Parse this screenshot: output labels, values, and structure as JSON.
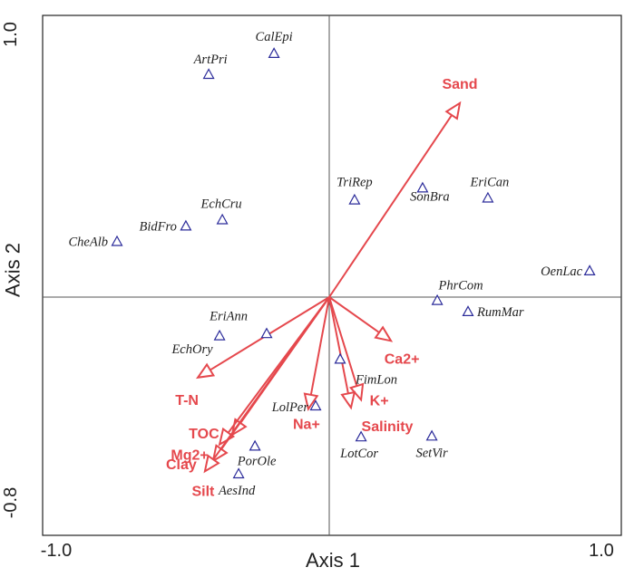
{
  "chart_data": {
    "type": "scatter",
    "title": "",
    "xlabel": "Axis 1",
    "ylabel": "Axis 2",
    "xlim": [
      -1.0,
      1.0
    ],
    "ylim": [
      -0.8,
      1.0
    ],
    "x_ticks": [
      "-1.0",
      "1.0"
    ],
    "y_ticks": [
      "1.0",
      "-0.8"
    ],
    "grid": false,
    "zero_lines": true,
    "species_marker": "open-triangle",
    "colors": {
      "species": "#2b2b9a",
      "vectors": "#e5484d",
      "frame": "#222222",
      "zero_lines": "#555555"
    },
    "species": [
      {
        "label": "CalEpi",
        "x": -0.203,
        "y": 0.897
      },
      {
        "label": "ArtPri",
        "x": -0.443,
        "y": 0.82
      },
      {
        "label": "TriRep",
        "x": 0.093,
        "y": 0.358
      },
      {
        "label": "SonBra",
        "x": 0.343,
        "y": 0.402
      },
      {
        "label": "EriCan",
        "x": 0.583,
        "y": 0.365
      },
      {
        "label": "EchCru",
        "x": -0.393,
        "y": 0.285
      },
      {
        "label": "BidFro",
        "x": -0.527,
        "y": 0.262
      },
      {
        "label": "CheAlb",
        "x": -0.78,
        "y": 0.205
      },
      {
        "label": "OenLac",
        "x": 0.957,
        "y": 0.097
      },
      {
        "label": "PhrCom",
        "x": 0.397,
        "y": -0.012
      },
      {
        "label": "RumMar",
        "x": 0.51,
        "y": -0.053
      },
      {
        "label": "EriAnn",
        "x": -0.403,
        "y": -0.142
      },
      {
        "label": "EchOry",
        "x": -0.23,
        "y": -0.134
      },
      {
        "label": "FimLon",
        "x": 0.04,
        "y": -0.228
      },
      {
        "label": "LolPer",
        "x": -0.05,
        "y": -0.4
      },
      {
        "label": "LotCor",
        "x": 0.117,
        "y": -0.514
      },
      {
        "label": "SetVir",
        "x": 0.377,
        "y": -0.511
      },
      {
        "label": "PorOle",
        "x": -0.273,
        "y": -0.548
      },
      {
        "label": "AesInd",
        "x": -0.333,
        "y": -0.65
      }
    ],
    "vectors": [
      {
        "label": "Sand",
        "x": 0.48,
        "y": 0.714
      },
      {
        "label": "Ca2+",
        "x": 0.227,
        "y": -0.161
      },
      {
        "label": "K+",
        "x": 0.117,
        "y": -0.378
      },
      {
        "label": "Salinity",
        "x": 0.08,
        "y": -0.407
      },
      {
        "label": "Na+",
        "x": -0.077,
        "y": -0.412
      },
      {
        "label": "T-N",
        "x": -0.483,
        "y": -0.296
      },
      {
        "label": "TOC",
        "x": -0.357,
        "y": -0.507
      },
      {
        "label": "Mg2+",
        "x": -0.403,
        "y": -0.542
      },
      {
        "label": "Clay",
        "x": -0.427,
        "y": -0.603
      },
      {
        "label": "Silt",
        "x": -0.457,
        "y": -0.641
      }
    ]
  }
}
